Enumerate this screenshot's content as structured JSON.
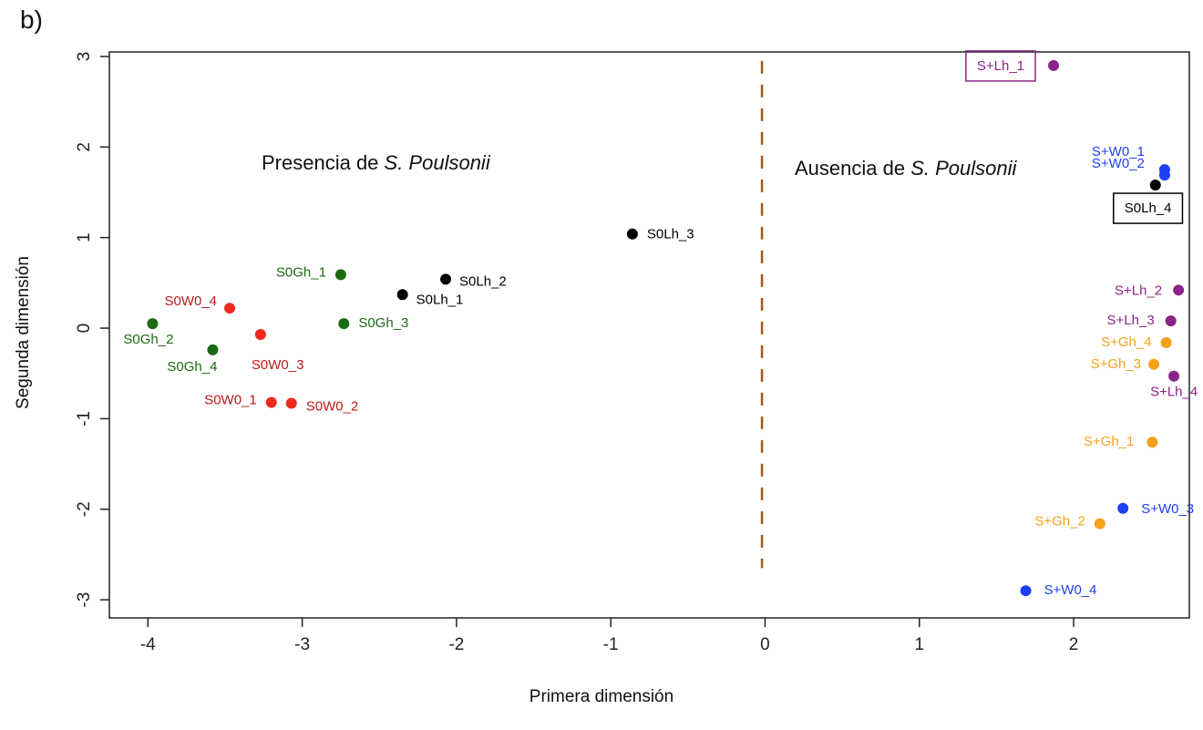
{
  "panel_label": "b)",
  "chart_data": {
    "type": "scatter",
    "xlabel": "Primera dimensión",
    "ylabel": "Segunda dimensión",
    "xlim": [
      -4.25,
      2.75
    ],
    "ylim": [
      -3.2,
      3.05
    ],
    "x_ticks": [
      -4,
      -3,
      -2,
      -1,
      0,
      1,
      2
    ],
    "y_ticks": [
      -3,
      -2,
      -1,
      0,
      1,
      2,
      3
    ],
    "grid": false,
    "divider": {
      "x": -0.02,
      "y_range": [
        -2.65,
        2.95
      ],
      "style": "dashed",
      "color": "#a0591a"
    },
    "regions": [
      {
        "text": "Presencia de ",
        "italic": "S. Poulsonii",
        "side": "left"
      },
      {
        "text": "Ausencia de ",
        "italic": "S. Poulsonii",
        "side": "right"
      }
    ],
    "groups": {
      "S0W0": "#ee2a1e",
      "S0Gh": "#1c6a13",
      "S0Lh": "#000000",
      "S+W0": "#1f3ff2",
      "S+Gh": "#f7a11a",
      "S+Lh": "#8a2488"
    },
    "label_colors": {
      "S0W0": "#c01818",
      "S0Gh": "#1c6a13",
      "S0Lh": "#000000",
      "S+W0": "#1f3ff2",
      "S+Gh": "#f7a11a",
      "S+Lh": "#8a2488"
    },
    "points": [
      {
        "label": "S0W0_1",
        "group": "S0W0",
        "x": -3.2,
        "y": -0.82
      },
      {
        "label": "S0W0_2",
        "group": "S0W0",
        "x": -3.07,
        "y": -0.83
      },
      {
        "label": "S0W0_3",
        "group": "S0W0",
        "x": -3.27,
        "y": -0.07
      },
      {
        "label": "S0W0_4",
        "group": "S0W0",
        "x": -3.47,
        "y": 0.22
      },
      {
        "label": "S0Gh_1",
        "group": "S0Gh",
        "x": -2.75,
        "y": 0.59
      },
      {
        "label": "S0Gh_2",
        "group": "S0Gh",
        "x": -3.97,
        "y": 0.05
      },
      {
        "label": "S0Gh_3",
        "group": "S0Gh",
        "x": -2.73,
        "y": 0.05
      },
      {
        "label": "S0Gh_4",
        "group": "S0Gh",
        "x": -3.58,
        "y": -0.24
      },
      {
        "label": "S0Lh_1",
        "group": "S0Lh",
        "x": -2.35,
        "y": 0.37
      },
      {
        "label": "S0Lh_2",
        "group": "S0Lh",
        "x": -2.07,
        "y": 0.54
      },
      {
        "label": "S0Lh_3",
        "group": "S0Lh",
        "x": -0.86,
        "y": 1.04
      },
      {
        "label": "S0Lh_4",
        "group": "S0Lh",
        "x": 2.53,
        "y": 1.58
      },
      {
        "label": "S+W0_1",
        "group": "S+W0",
        "x": 2.59,
        "y": 1.75
      },
      {
        "label": "S+W0_2",
        "group": "S+W0",
        "x": 2.59,
        "y": 1.69
      },
      {
        "label": "S+W0_3",
        "group": "S+W0",
        "x": 2.32,
        "y": -1.99
      },
      {
        "label": "S+W0_4",
        "group": "S+W0",
        "x": 1.69,
        "y": -2.9
      },
      {
        "label": "S+Gh_1",
        "group": "S+Gh",
        "x": 2.51,
        "y": -1.26
      },
      {
        "label": "S+Gh_2",
        "group": "S+Gh",
        "x": 2.17,
        "y": -2.16
      },
      {
        "label": "S+Gh_3",
        "group": "S+Gh",
        "x": 2.52,
        "y": -0.4
      },
      {
        "label": "S+Gh_4",
        "group": "S+Gh",
        "x": 2.6,
        "y": -0.16
      },
      {
        "label": "S+Lh_1",
        "group": "S+Lh",
        "x": 1.87,
        "y": 2.9
      },
      {
        "label": "S+Lh_2",
        "group": "S+Lh",
        "x": 2.68,
        "y": 0.42
      },
      {
        "label": "S+Lh_3",
        "group": "S+Lh",
        "x": 2.63,
        "y": 0.08
      },
      {
        "label": "S+Lh_4",
        "group": "S+Lh",
        "x": 2.65,
        "y": -0.53
      }
    ]
  }
}
